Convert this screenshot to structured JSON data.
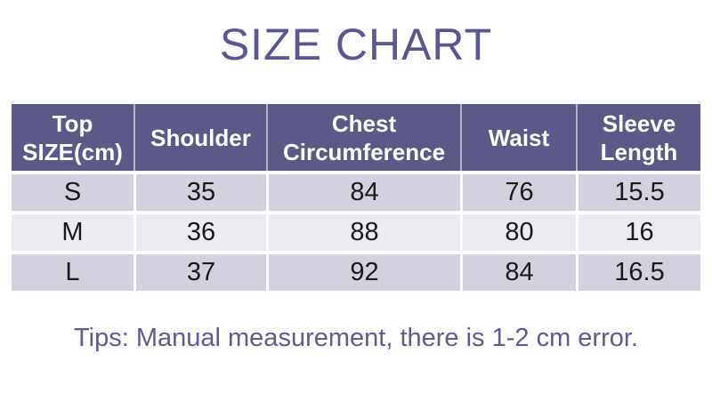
{
  "title": "SIZE CHART",
  "table": {
    "header": [
      "Top\nSIZE(cm)",
      "Shoulder",
      "Chest\nCircumference",
      "Waist",
      "Sleeve\nLength"
    ]
  },
  "chart_data": {
    "type": "table",
    "title": "SIZE CHART",
    "columns": [
      "Top SIZE(cm)",
      "Shoulder",
      "Chest Circumference",
      "Waist",
      "Sleeve Length"
    ],
    "rows": [
      [
        "S",
        35,
        84,
        76,
        15.5
      ],
      [
        "M",
        36,
        88,
        80,
        16
      ],
      [
        "L",
        37,
        92,
        84,
        16.5
      ]
    ],
    "footnote": "Tips: Manual measurement, there is 1-2 cm error."
  },
  "tips": "Tips: Manual measurement, there is 1-2 cm error.",
  "colors": {
    "title": "#5b5890",
    "header_bg": "#5b5987",
    "header_text": "#ffffff",
    "header_divider": "#b4b3c8",
    "row_odd": "#d2d1de",
    "row_even": "#ebebf1",
    "body_text": "#1a1a1a",
    "tips": "#5e5b96",
    "background": "#ffffff"
  }
}
